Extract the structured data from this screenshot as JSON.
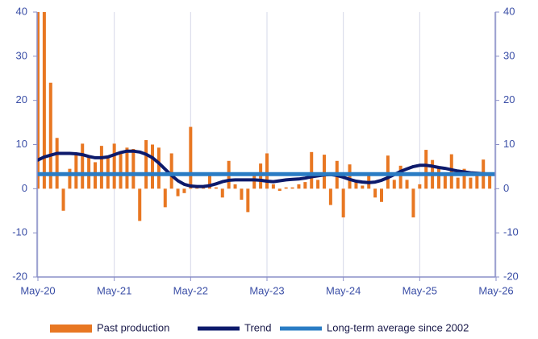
{
  "chart_data": {
    "type": "combo",
    "categories": [
      "May-20",
      null,
      null,
      null,
      null,
      null,
      null,
      null,
      null,
      null,
      null,
      null,
      "May-21",
      null,
      null,
      null,
      null,
      null,
      null,
      null,
      null,
      null,
      null,
      null,
      "May-22",
      null,
      null,
      null,
      null,
      null,
      null,
      null,
      null,
      null,
      null,
      null,
      "May-23",
      null,
      null,
      null,
      null,
      null,
      null,
      null,
      null,
      null,
      null,
      null,
      "May-24",
      null,
      null,
      null,
      null,
      null,
      null,
      null,
      null,
      null,
      null,
      null,
      "May-25",
      null,
      null,
      null,
      null,
      null,
      null,
      null,
      null,
      null,
      null,
      null,
      "May-26"
    ],
    "series": [
      {
        "name": "Past production",
        "type": "bar",
        "color": "#e87722",
        "values": [
          40,
          40,
          24,
          11.5,
          -5,
          4.5,
          8,
          10.2,
          7,
          6,
          9.7,
          7,
          10.2,
          8,
          9.3,
          9,
          -7.3,
          11,
          10,
          9.3,
          -4.2,
          8,
          -1.7,
          -1,
          14,
          0.5,
          0.3,
          3,
          0.3,
          -2,
          6.3,
          1,
          -2.5,
          -5.3,
          3,
          5.7,
          8,
          1,
          -0.5,
          0.3,
          0.3,
          1,
          1.5,
          8.3,
          2,
          7.7,
          -3.7,
          6.3,
          -6.5,
          5.5,
          1.5,
          0.7,
          3,
          -2,
          -3,
          7.5,
          2,
          5.2,
          2,
          -6.5,
          1,
          8.8,
          6.5,
          4.8,
          3,
          7.8,
          2.5,
          4.5,
          2.5,
          3,
          6.6,
          3.3,
          -0.3
        ]
      },
      {
        "name": "Trend",
        "type": "line",
        "color": "#0d1a6b",
        "values": [
          6.5,
          7.2,
          7.6,
          8,
          8,
          8,
          7.9,
          7.7,
          7.3,
          7,
          7,
          7.2,
          7.7,
          8.2,
          8.5,
          8.5,
          8.3,
          7.8,
          7,
          5.8,
          4.4,
          3,
          1.8,
          1,
          0.6,
          0.5,
          0.5,
          0.7,
          1.1,
          1.6,
          1.9,
          2,
          2,
          2,
          2,
          1.9,
          1.7,
          1.6,
          1.8,
          2,
          2.1,
          2.2,
          2.4,
          2.7,
          2.9,
          3.1,
          3.2,
          3,
          2.6,
          2.1,
          1.7,
          1.5,
          1.4,
          1.5,
          1.9,
          2.5,
          3.2,
          3.9,
          4.5,
          5,
          5.3,
          5.3,
          5.1,
          4.8,
          4.6,
          4.3,
          4,
          3.8,
          3.6,
          3.5,
          3.4,
          3.3,
          3.3
        ]
      },
      {
        "name": "Long-term average since 2002",
        "type": "line",
        "color": "#2a7cc4",
        "values": [
          3.3,
          3.3,
          3.3,
          3.3,
          3.3,
          3.3,
          3.3,
          3.3,
          3.3,
          3.3,
          3.3,
          3.3,
          3.3,
          3.3,
          3.3,
          3.3,
          3.3,
          3.3,
          3.3,
          3.3,
          3.3,
          3.3,
          3.3,
          3.3,
          3.3,
          3.3,
          3.3,
          3.3,
          3.3,
          3.3,
          3.3,
          3.3,
          3.3,
          3.3,
          3.3,
          3.3,
          3.3,
          3.3,
          3.3,
          3.3,
          3.3,
          3.3,
          3.3,
          3.3,
          3.3,
          3.3,
          3.3,
          3.3,
          3.3,
          3.3,
          3.3,
          3.3,
          3.3,
          3.3,
          3.3,
          3.3,
          3.3,
          3.3,
          3.3,
          3.3,
          3.3,
          3.3,
          3.3,
          3.3,
          3.3,
          3.3,
          3.3,
          3.3,
          3.3,
          3.3,
          3.3,
          3.3,
          3.3
        ]
      }
    ],
    "ylim": [
      -20,
      40
    ],
    "yticks": [
      -20,
      -10,
      0,
      10,
      20,
      30,
      40
    ],
    "y2lim": [
      -20,
      40
    ],
    "y2ticks": [
      -20,
      -10,
      0,
      10,
      20,
      30,
      40
    ],
    "grid": "x",
    "legend": "bottom"
  }
}
